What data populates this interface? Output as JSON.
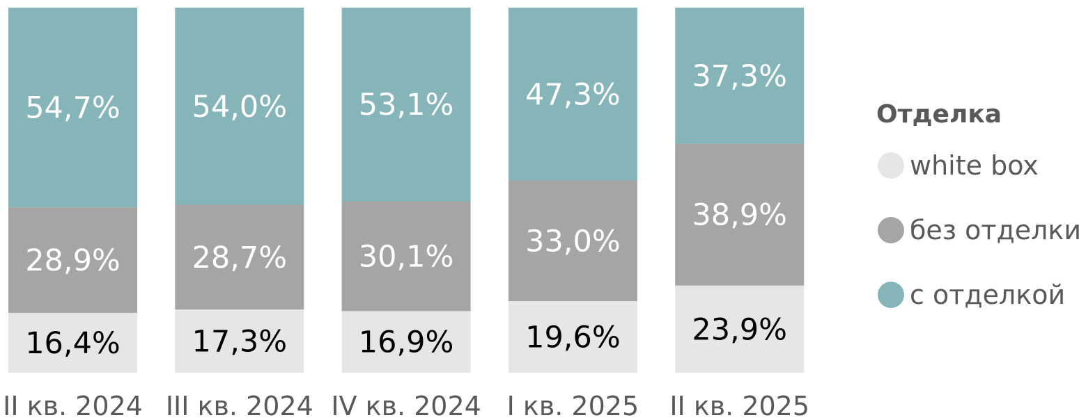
{
  "chart_data": {
    "type": "bar",
    "stacked": true,
    "percent": true,
    "categories": [
      "II кв. 2024",
      "III кв. 2024",
      "IV кв. 2024",
      "I кв. 2025",
      "II кв. 2025"
    ],
    "series": [
      {
        "name": "white box",
        "color": "#e6e6e6",
        "label_color": "#000000",
        "values": [
          16.4,
          17.3,
          16.9,
          19.6,
          23.9
        ],
        "labels": [
          "16,4%",
          "17,3%",
          "16,9%",
          "19,6%",
          "23,9%"
        ]
      },
      {
        "name": "без отделки",
        "color": "#a5a5a5",
        "label_color": "#ffffff",
        "values": [
          28.9,
          28.7,
          30.1,
          33.0,
          38.9
        ],
        "labels": [
          "28,9%",
          "28,7%",
          "30,1%",
          "33,0%",
          "38,9%"
        ]
      },
      {
        "name": "с отделкой",
        "color": "#85b4b9",
        "label_color": "#ffffff",
        "values": [
          54.7,
          54.0,
          53.1,
          47.3,
          37.3
        ],
        "labels": [
          "54,7%",
          "54,0%",
          "53,1%",
          "47,3%",
          "37,3%"
        ]
      }
    ],
    "legend": {
      "title": "Отделка",
      "position": "right",
      "order": [
        0,
        1,
        2
      ]
    },
    "ylim": [
      0,
      100
    ],
    "grid": false
  }
}
